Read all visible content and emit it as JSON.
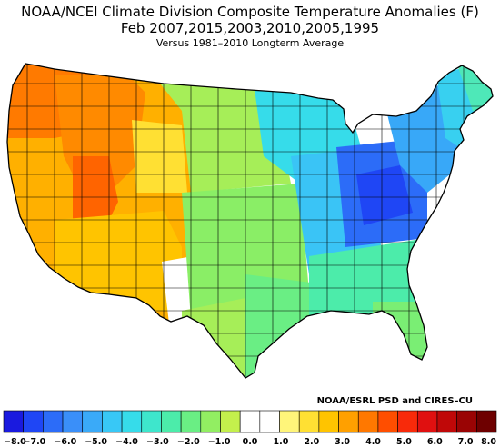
{
  "title": {
    "line1": "NOAA/NCEI Climate Division Composite Temperature Anomalies (F)",
    "line2": "Feb    2007,2015,2003,2010,2005,1995",
    "line3": "Versus 1981–2010 Longterm Average"
  },
  "credit": "NOAA/ESRL PSD and CIRES–CU",
  "legend": {
    "colors": [
      "#1a1adf",
      "#1f46f5",
      "#2c6cf8",
      "#3a8ff9",
      "#3aaaf8",
      "#38c8f6",
      "#36dcea",
      "#3ee6cc",
      "#4cecaa",
      "#6aee84",
      "#92ee62",
      "#c4f04c",
      "#ffffff",
      "#ffffff",
      "#fff57a",
      "#ffe033",
      "#ffc400",
      "#ffa000",
      "#ff7800",
      "#ff4e00",
      "#f82a0a",
      "#e01010",
      "#c00808",
      "#9a0404",
      "#6e0000"
    ],
    "ticks": [
      "−8.0",
      "−7.0",
      "−6.0",
      "−5.0",
      "−4.0",
      "−3.0",
      "−2.0",
      "−1.0",
      "0.0",
      "1.0",
      "2.0",
      "3.0",
      "4.0",
      "5.0",
      "6.0",
      "7.0",
      "8.0"
    ]
  },
  "map_regions": [
    {
      "name": "pacific-northwest",
      "anomaly": 5.5,
      "color": "#ff7a00"
    },
    {
      "name": "idaho-montana-west",
      "anomaly": 5.0,
      "color": "#ff8a00"
    },
    {
      "name": "montana-wyoming-east",
      "anomaly": 2.0,
      "color": "#ffe033"
    },
    {
      "name": "california-nevada",
      "anomaly": 4.0,
      "color": "#ffb000"
    },
    {
      "name": "southwest",
      "anomaly": 3.0,
      "color": "#ffc400"
    },
    {
      "name": "great-basin",
      "anomaly": 6.0,
      "color": "#ff6400"
    },
    {
      "name": "colorado-new-mexico-border",
      "anomaly": 0.0,
      "color": "#ffffff"
    },
    {
      "name": "northern-plains",
      "anomaly": -1.0,
      "color": "#a6ee58"
    },
    {
      "name": "central-plains",
      "anomaly": -1.5,
      "color": "#8aee66"
    },
    {
      "name": "texas-west",
      "anomaly": -1.0,
      "color": "#a6ee58"
    },
    {
      "name": "texas-east",
      "anomaly": -2.0,
      "color": "#6aee84"
    },
    {
      "name": "upper-midwest",
      "anomaly": -3.5,
      "color": "#36dcea"
    },
    {
      "name": "midwest",
      "anomaly": -4.0,
      "color": "#3ac4f6"
    },
    {
      "name": "ohio-valley",
      "anomaly": -6.0,
      "color": "#2c6cf8"
    },
    {
      "name": "appalachia-core",
      "anomaly": -7.0,
      "color": "#1f46f5"
    },
    {
      "name": "southeast",
      "anomaly": -2.5,
      "color": "#4cecaa"
    },
    {
      "name": "florida",
      "anomaly": -1.5,
      "color": "#7aee74"
    },
    {
      "name": "northeast",
      "anomaly": -4.5,
      "color": "#38a8f8"
    },
    {
      "name": "new-england",
      "anomaly": -3.5,
      "color": "#38d0f0"
    },
    {
      "name": "maine",
      "anomaly": -2.0,
      "color": "#4ee8b8"
    }
  ]
}
